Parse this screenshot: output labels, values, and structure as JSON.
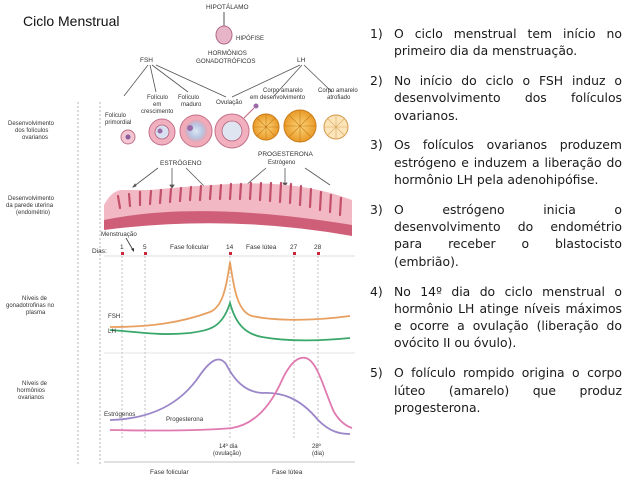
{
  "title": "Ciclo Menstrual",
  "diagram": {
    "hypothalamus": "HIPOTÁLAMO",
    "pituitary": "HIPÓFISE",
    "hormones_line1": "HORMÔNIOS",
    "hormones_line2": "GONADOTRÓFICOS",
    "fsh": "FSH",
    "lh": "LH",
    "primordial_line1": "Folículo",
    "primordial_line2": "primordial",
    "growing_line1": "Folículo",
    "growing_line2": "em",
    "growing_line3": "crescimento",
    "mature_line1": "Folículo",
    "mature_line2": "maduro",
    "ovulation": "Ovulação",
    "corpus_dev_line1": "Corpo amarelo",
    "corpus_dev_line2": "em desenvolvimento",
    "corpus_atr_line1": "Corpo amarelo",
    "corpus_atr_line2": "atrofiado",
    "estrogen_cap": "ESTRÓGENO",
    "progesterone_cap": "PROGESTERONA",
    "estrogen_small": "Estrógeno",
    "side_follicles_1": "Desenvolvimento",
    "side_follicles_2": "dos folículos",
    "side_follicles_3": "ovarianos",
    "side_uterus_1": "Desenvolvimento",
    "side_uterus_2": "da parede uterina",
    "side_uterus_3": "(endométrio)",
    "side_gonado_1": "Níveis de",
    "side_gonado_2": "gonadotrofinas no",
    "side_gonado_3": "plasma",
    "side_ovarian_1": "Níveis de",
    "side_ovarian_2": "hormônios",
    "side_ovarian_3": "ovarianos",
    "menstruation": "Menstruação",
    "days_label": "Dias:",
    "day1": "1",
    "day5": "5",
    "day14": "14",
    "day27": "27",
    "day28": "28",
    "phase_follicular": "Fase folicular",
    "phase_luteal": "Fase lútea",
    "curve_fsh": "FSH",
    "curve_lh": "LH",
    "curve_estrogen": "Estrógenos",
    "curve_progesterone": "Progesterona",
    "day14_bottom_1": "14º dia",
    "day14_bottom_2": "(ovulação)",
    "day28_bottom_1": "28º",
    "day28_bottom_2": "(dia)",
    "bottom_follicular": "Fase folicular",
    "bottom_luteal": "Fase lútea",
    "colors": {
      "fsh": "#e8a060",
      "lh": "#3aa86b",
      "estrogen": "#9a86c8",
      "progesterone": "#e07ab0",
      "endometrium": "#d4607a",
      "corpus": "#f0b43c",
      "day_marker": "#c8283c"
    }
  },
  "steps": [
    {
      "num": "1)",
      "text": "O ciclo menstrual tem início no primeiro dia da menstruação."
    },
    {
      "num": "2)",
      "text": "No início do ciclo o FSH induz o desenvolvimento dos folículos ovarianos."
    },
    {
      "num": "3)",
      "text": "Os folículos ovarianos produzem estrógeno e induzem a liberação do hormônio LH pela adenohipófise."
    },
    {
      "num": "3)",
      "text": "O estrógeno inicia o desenvolvimento do endométrio para receber o blastocisto (embrião)."
    },
    {
      "num": "4)",
      "text": "No 14º dia do ciclo menstrual o hormônio LH atinge níveis máximos e ocorre a ovulação (liberação do ovócito II ou óvulo)."
    },
    {
      "num": "5)",
      "text": "O folículo rompido origina o corpo lúteo (amarelo) que produz progesterona."
    }
  ]
}
